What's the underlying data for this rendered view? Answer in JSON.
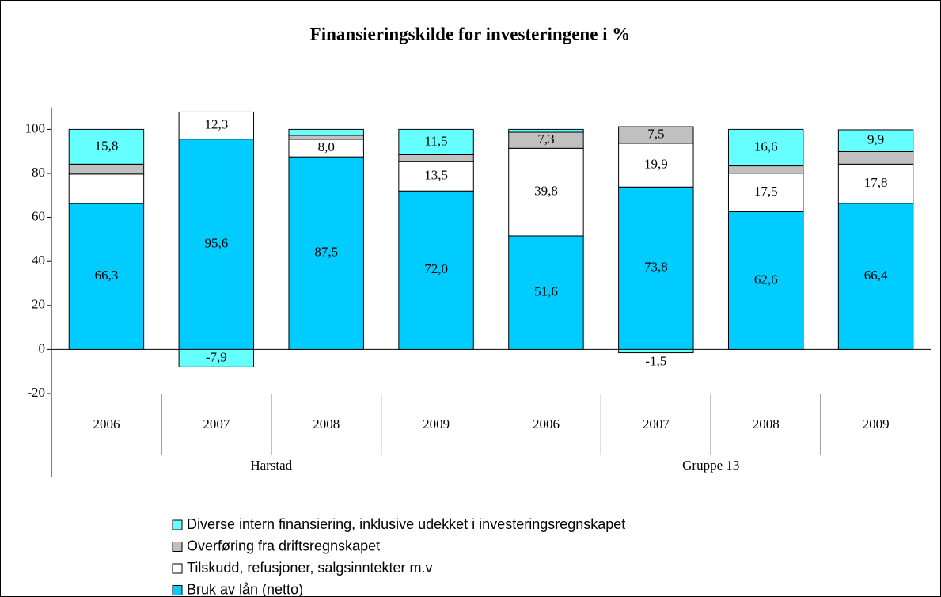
{
  "chart_data": {
    "type": "stacked_bar",
    "title": "Finansieringskilde for investeringene i %",
    "categories": [
      "2006",
      "2007",
      "2008",
      "2009",
      "2006",
      "2007",
      "2008",
      "2009"
    ],
    "groups": [
      "Harstad",
      "Gruppe 13"
    ],
    "ylim": [
      -20,
      110
    ],
    "yticks": [
      -20,
      0,
      20,
      40,
      60,
      80,
      100
    ],
    "series": [
      {
        "name": "Bruk av lån (netto)",
        "color": "#00ccff",
        "values": [
          66.3,
          95.6,
          87.5,
          72.0,
          51.6,
          73.8,
          62.6,
          66.4
        ],
        "value_labels": [
          "66,3",
          "95,6",
          "87,5",
          "72,0",
          "51,6",
          "73,8",
          "62,6",
          "66,4"
        ]
      },
      {
        "name": "Tilskudd, refusjoner, salgsinntekter m.v",
        "color": "#ffffff",
        "values": [
          13.4,
          12.3,
          8.0,
          13.5,
          39.8,
          19.9,
          17.5,
          17.8
        ],
        "value_labels": [
          null,
          "12,3",
          "8,0",
          "13,5",
          "39,8",
          "19,9",
          "17,5",
          "17,8"
        ]
      },
      {
        "name": "Overføring fra driftsregnskapet",
        "color": "#c0c0c0",
        "values": [
          4.5,
          0,
          1.8,
          3.0,
          7.3,
          7.5,
          3.3,
          5.7
        ],
        "value_labels": [
          null,
          null,
          null,
          null,
          "7,3",
          "7,5",
          null,
          "5,7"
        ]
      },
      {
        "name": "Diverse intern finansiering, inklusive udekket i investeringsregnskapet",
        "color": "#66ffff",
        "values": [
          15.8,
          -7.9,
          2.7,
          11.5,
          1.3,
          -1.5,
          16.6,
          9.9
        ],
        "value_labels": [
          "15,8",
          "-7,9",
          null,
          "11,5",
          null,
          "-1,5",
          "16,6",
          "9,9"
        ]
      }
    ]
  }
}
